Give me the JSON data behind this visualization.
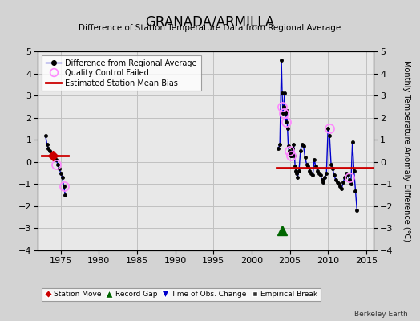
{
  "title": "GRANADA/ARMILLA",
  "subtitle": "Difference of Station Temperature Data from Regional Average",
  "ylabel_right": "Monthly Temperature Anomaly Difference (°C)",
  "bg_color": "#d3d3d3",
  "plot_bg_color": "#e8e8e8",
  "ylim": [
    -4,
    5
  ],
  "xlim": [
    1972,
    2016
  ],
  "yticks": [
    -4,
    -3,
    -2,
    -1,
    0,
    1,
    2,
    3,
    4,
    5
  ],
  "xticks": [
    1975,
    1980,
    1985,
    1990,
    1995,
    2000,
    2005,
    2010,
    2015
  ],
  "segment1_x": [
    1973.0,
    1973.2,
    1973.4,
    1973.6,
    1973.8,
    1974.0,
    1974.2,
    1974.4,
    1974.6,
    1974.8,
    1975.0,
    1975.2,
    1975.4,
    1975.6
  ],
  "segment1_y": [
    1.2,
    0.8,
    0.6,
    0.5,
    0.4,
    0.3,
    0.2,
    0.1,
    -0.1,
    -0.3,
    -0.5,
    -0.7,
    -1.1,
    -1.5
  ],
  "segment2_x": [
    2003.5,
    2003.7,
    2003.9,
    2004.0,
    2004.1,
    2004.2,
    2004.3,
    2004.4,
    2004.5,
    2004.6,
    2004.7,
    2004.8,
    2004.9,
    2005.0,
    2005.1,
    2005.2,
    2005.3,
    2005.4,
    2005.5,
    2005.6,
    2005.7,
    2005.8,
    2005.9,
    2006.0,
    2006.2,
    2006.4,
    2006.6,
    2006.8,
    2007.0,
    2007.2,
    2007.4,
    2007.6,
    2007.8,
    2008.0,
    2008.2,
    2008.4,
    2008.6,
    2008.8,
    2009.0,
    2009.2,
    2009.4,
    2009.6,
    2009.8,
    2010.0,
    2010.2,
    2010.4,
    2010.6,
    2010.8,
    2011.0,
    2011.2,
    2011.4,
    2011.6,
    2011.8,
    2012.0,
    2012.2,
    2012.4,
    2012.6,
    2012.8,
    2013.0,
    2013.2,
    2013.4,
    2013.6,
    2013.8
  ],
  "segment2_y": [
    0.6,
    0.8,
    4.6,
    3.1,
    2.2,
    2.5,
    3.1,
    2.2,
    1.8,
    2.3,
    1.5,
    0.7,
    0.5,
    0.4,
    0.3,
    0.3,
    0.4,
    0.6,
    0.8,
    0.3,
    -0.2,
    -0.4,
    -0.5,
    -0.7,
    -0.4,
    0.5,
    0.8,
    0.7,
    0.2,
    -0.1,
    -0.2,
    -0.4,
    -0.5,
    -0.6,
    0.1,
    -0.2,
    -0.4,
    -0.5,
    -0.6,
    -0.8,
    -0.9,
    -0.7,
    -0.5,
    1.5,
    1.2,
    -0.1,
    -0.3,
    -0.6,
    -0.8,
    -0.9,
    -1.0,
    -1.1,
    -1.2,
    -0.9,
    -0.7,
    -0.5,
    -0.6,
    -0.8,
    -1.0,
    0.9,
    -0.4,
    -1.3,
    -2.2
  ],
  "qc_fail_x": [
    1974.4,
    1975.4,
    2004.0,
    2004.2,
    2004.5,
    2004.9,
    2005.1,
    2010.2,
    2012.8
  ],
  "qc_fail_y": [
    -0.1,
    -1.1,
    2.5,
    2.2,
    1.8,
    0.5,
    0.3,
    1.5,
    -0.7
  ],
  "station_move_x": [
    1974.0
  ],
  "station_move_y": [
    0.3
  ],
  "bias_x1_seg1": 1972.5,
  "bias_x2_seg1": 1976.0,
  "bias_y_seg1": 0.3,
  "bias_x1_seg2": 2003.3,
  "bias_x2_seg2": 2016.5,
  "bias_y_seg2": -0.25,
  "record_gap_x": 2004.0,
  "record_gap_y": -3.1,
  "line_color": "#0000cc",
  "dot_color": "#000000",
  "qc_color": "#ff88ff",
  "bias_color": "#cc0000",
  "station_move_color": "#cc0000",
  "record_gap_color": "#006600",
  "obs_change_color": "#0000cc",
  "empirical_break_color": "#333333",
  "gridline_color": "#c0c0c0"
}
